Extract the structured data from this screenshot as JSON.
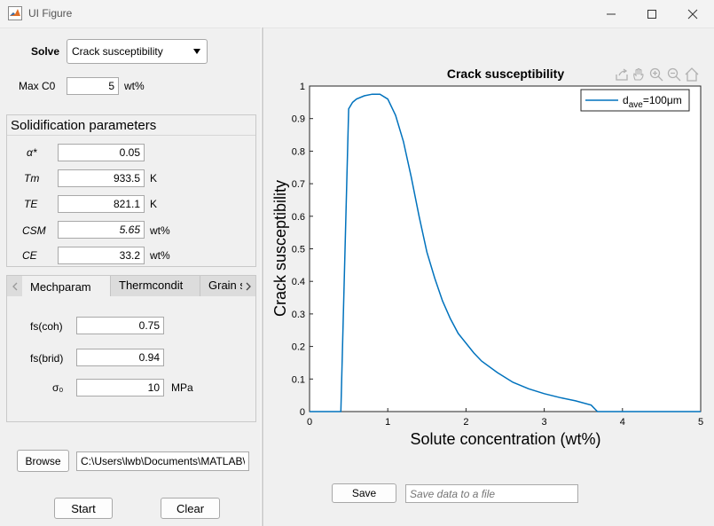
{
  "window": {
    "title": "UI Figure"
  },
  "solve": {
    "label": "Solve",
    "value": "Crack susceptibility"
  },
  "maxc0": {
    "label": "Max C0",
    "value": "5",
    "unit": "wt%"
  },
  "solidification": {
    "title": "Solidification parameters",
    "params": [
      {
        "label": "α*",
        "value": "0.05",
        "unit": "",
        "value_italic": false
      },
      {
        "label": "Tm",
        "value": "933.5",
        "unit": "K",
        "value_italic": false
      },
      {
        "label": "TE",
        "value": "821.1",
        "unit": "K",
        "value_italic": false
      },
      {
        "label": "CSM",
        "value": "5.65",
        "unit": "wt%",
        "value_italic": true
      },
      {
        "label": "CE",
        "value": "33.2",
        "unit": "wt%",
        "value_italic": false
      }
    ]
  },
  "tabs": [
    {
      "label": "Mechparam",
      "active": true
    },
    {
      "label": "Thermcondit",
      "active": false
    },
    {
      "label": "Grain s",
      "active": false
    }
  ],
  "mechparam": [
    {
      "label": "fs(coh)",
      "value": "0.75",
      "unit": ""
    },
    {
      "label": "fs(brid)",
      "value": "0.94",
      "unit": ""
    },
    {
      "label": "σ₀",
      "value": "10",
      "unit": "MPa"
    }
  ],
  "browse": {
    "label": "Browse",
    "path": "C:\\Users\\lwb\\Documents\\MATLAB\\"
  },
  "actions": {
    "start": "Start",
    "clear": "Clear"
  },
  "save": {
    "label": "Save",
    "placeholder": "Save data to a file"
  },
  "colors": {
    "line": "#0072bd",
    "background": "#f0f0f0"
  },
  "chart_data": {
    "type": "line",
    "title": "Crack susceptibility",
    "xlabel": "Solute concentration (wt%)",
    "ylabel": "Crack susceptibility",
    "xlim": [
      0,
      5
    ],
    "ylim": [
      0,
      1
    ],
    "xticks": [
      "0",
      "1",
      "2",
      "3",
      "4",
      "5"
    ],
    "yticks": [
      "0",
      "0.1",
      "0.2",
      "0.3",
      "0.4",
      "0.5",
      "0.6",
      "0.7",
      "0.8",
      "0.9",
      "1"
    ],
    "legend_placement": "top-right",
    "series": [
      {
        "name": "d_ave=100μm",
        "x": [
          0,
          0.4,
          0.5,
          0.55,
          0.6,
          0.7,
          0.8,
          0.9,
          1.0,
          1.1,
          1.2,
          1.3,
          1.4,
          1.5,
          1.6,
          1.7,
          1.8,
          1.9,
          2.0,
          2.1,
          2.2,
          2.4,
          2.6,
          2.8,
          3.0,
          3.2,
          3.4,
          3.6,
          3.68,
          4.0,
          5.0
        ],
        "y": [
          0,
          0,
          0.93,
          0.95,
          0.96,
          0.97,
          0.975,
          0.975,
          0.96,
          0.91,
          0.83,
          0.72,
          0.6,
          0.49,
          0.41,
          0.34,
          0.285,
          0.24,
          0.21,
          0.18,
          0.155,
          0.12,
          0.09,
          0.07,
          0.055,
          0.043,
          0.033,
          0.02,
          0,
          0,
          0
        ]
      }
    ]
  }
}
